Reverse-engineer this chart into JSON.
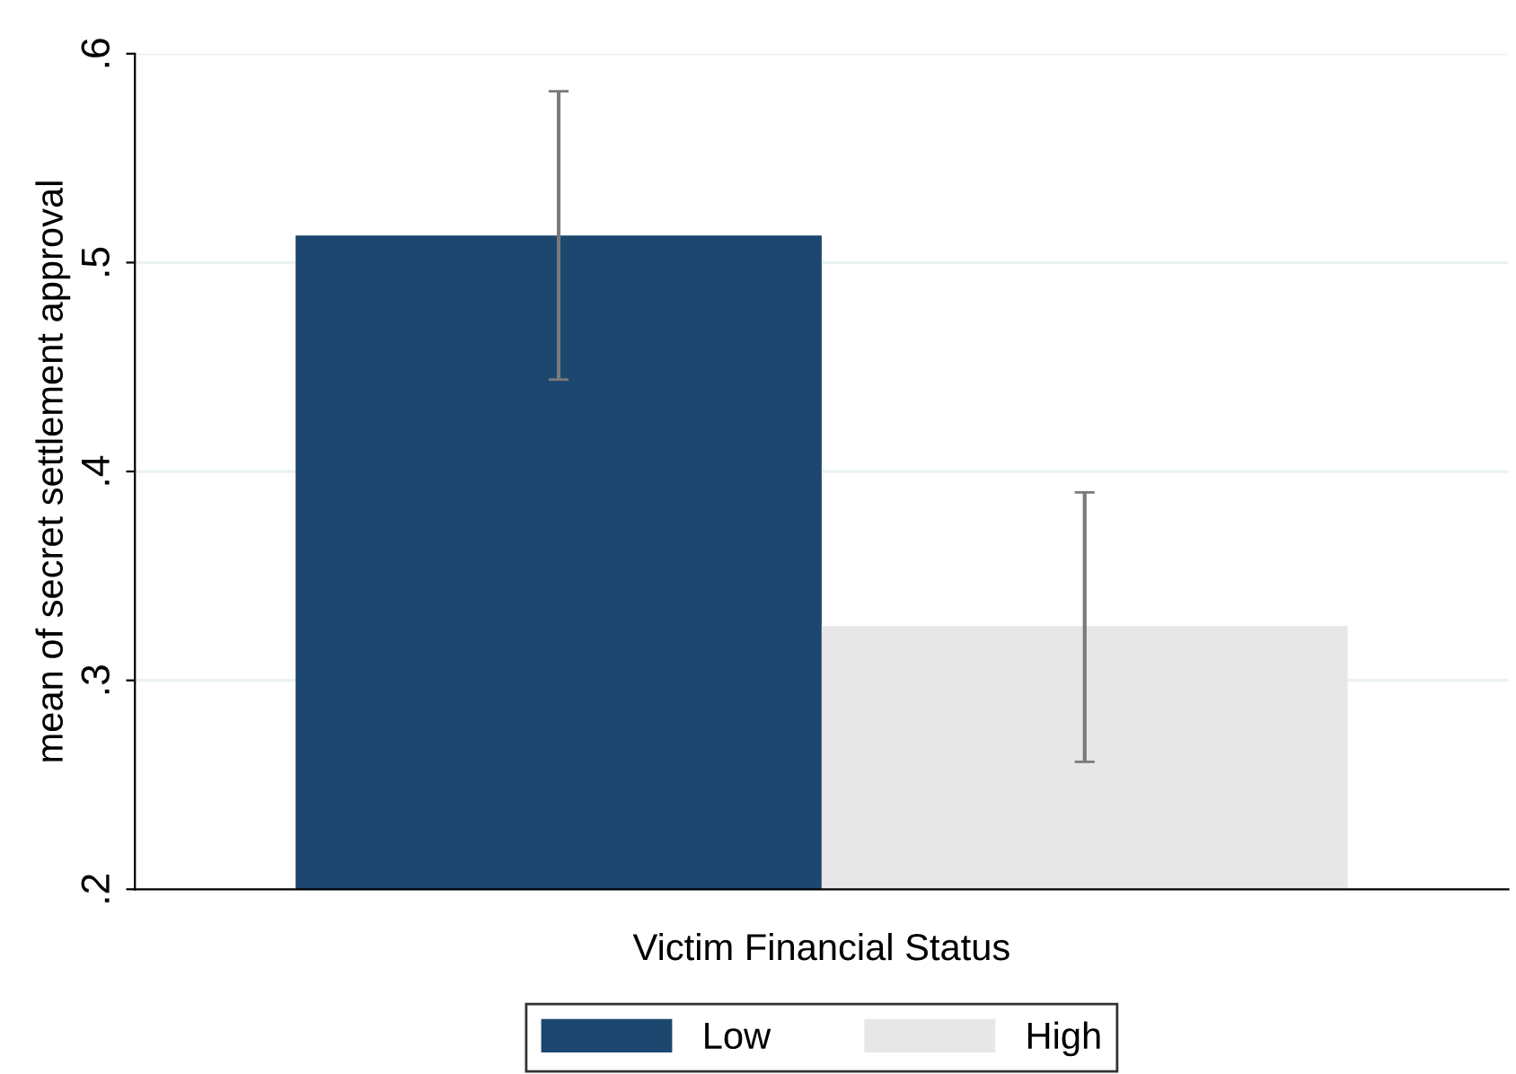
{
  "chart_data": {
    "type": "bar",
    "xlabel": "Victim Financial Status",
    "ylabel": "mean of secret settlement approval",
    "categories": [
      null
    ],
    "series": [
      {
        "name": "Low",
        "color": "#1d476f",
        "values": [
          0.513
        ],
        "errors": [
          [
            0.444,
            0.582
          ]
        ]
      },
      {
        "name": "High",
        "color": "#e7e7e7",
        "values": [
          0.326
        ],
        "errors": [
          [
            0.261,
            0.39
          ]
        ]
      }
    ],
    "ylim": [
      0.2,
      0.6
    ],
    "yticks": [
      {
        "value": 0.2,
        "label": ".2"
      },
      {
        "value": 0.3,
        "label": ".3"
      },
      {
        "value": 0.4,
        "label": ".4"
      },
      {
        "value": 0.5,
        "label": ".5"
      },
      {
        "value": 0.6,
        "label": ".6"
      }
    ],
    "grid": "y",
    "legend": "bottom"
  }
}
